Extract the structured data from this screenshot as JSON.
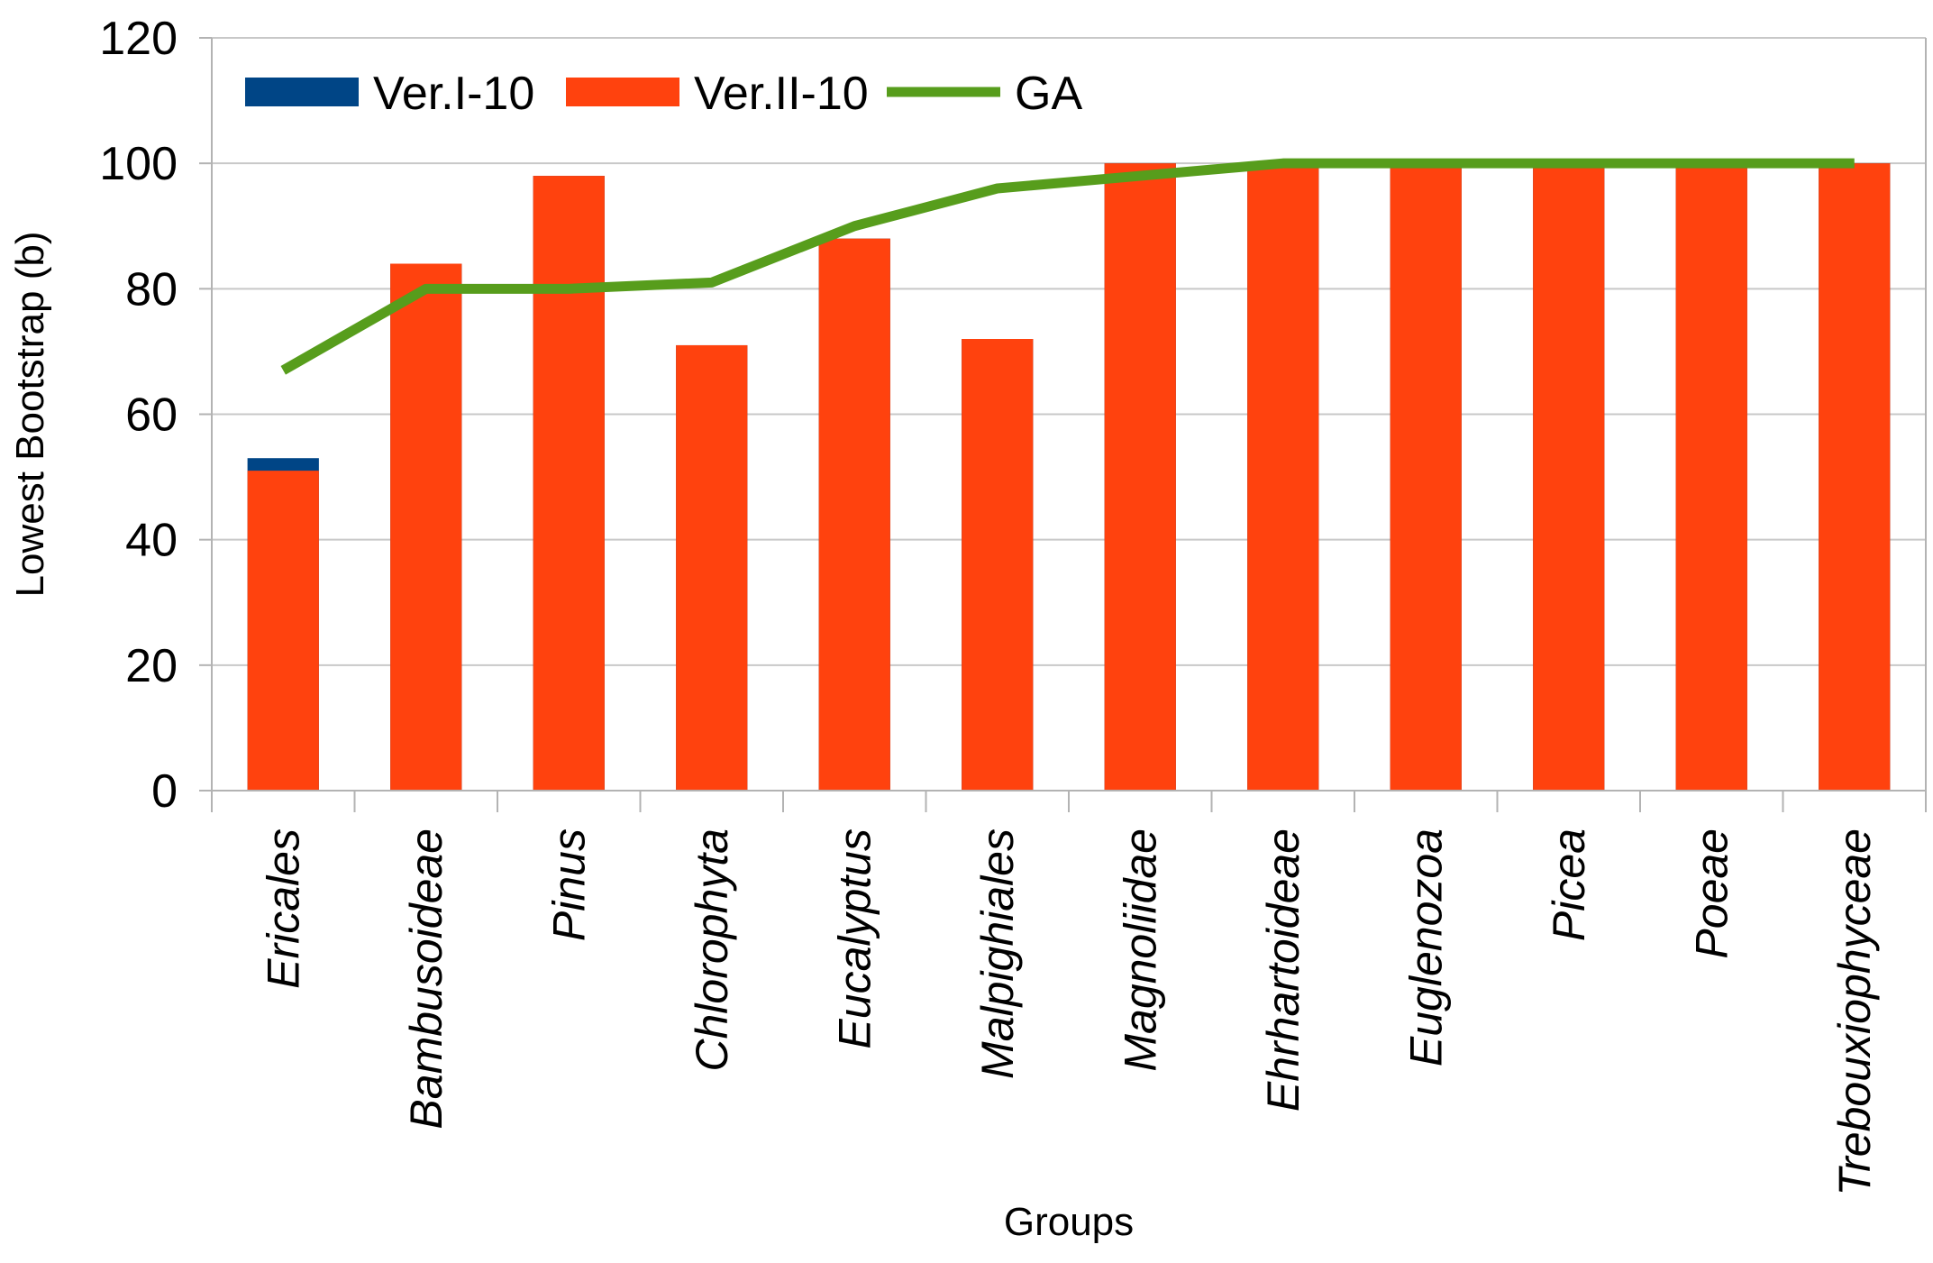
{
  "chart_data": {
    "type": "bar",
    "xlabel": "Groups",
    "ylabel": "Lowest Bootstrap (b)",
    "ylim": [
      0,
      120
    ],
    "ytick_step": 20,
    "grid": "horizontal",
    "legend_position": "top-left",
    "categories": [
      "Ericales",
      "Bambusoideae",
      "Pinus",
      "Chlorophyta",
      "Eucalyptus",
      "Malpighiales",
      "Magnoliidae",
      "Ehrhartoideae",
      "Euglenozoa",
      "Picea",
      "Poeae",
      "Trebouxiophyceae"
    ],
    "series": [
      {
        "name": "Ver.I-10",
        "kind": "bar",
        "color": "#004586",
        "values": [
          53,
          84,
          98,
          71,
          88,
          72,
          100,
          100,
          100,
          100,
          100,
          100
        ]
      },
      {
        "name": "Ver.II-10",
        "kind": "bar",
        "color": "#ff420e",
        "values": [
          51,
          84,
          98,
          71,
          88,
          72,
          100,
          100,
          100,
          100,
          100,
          100
        ]
      },
      {
        "name": "GA",
        "kind": "line",
        "color": "#579d1c",
        "values": [
          67,
          80,
          80,
          81,
          90,
          96,
          98,
          100,
          100,
          100,
          100,
          100
        ]
      }
    ]
  }
}
